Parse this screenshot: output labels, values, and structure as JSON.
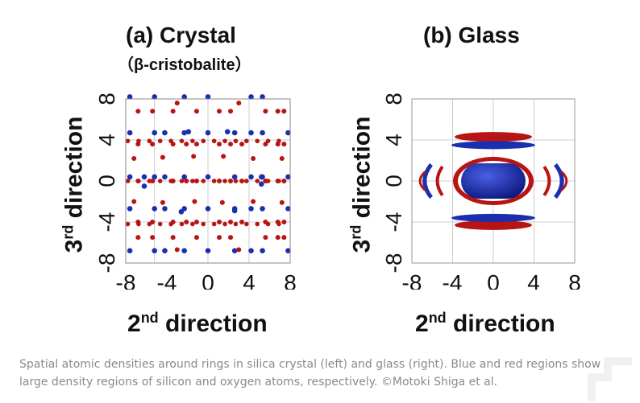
{
  "panels": [
    {
      "title": "(a) Crystal",
      "subtitle": "（β-cristobalite）",
      "xlabel_base": "2",
      "xlabel_sup": "nd",
      "xlabel_rest": " direction",
      "ylabel_base": "3",
      "ylabel_sup": "rd",
      "ylabel_rest": " direction",
      "x_ticks": [
        "-8",
        "-4",
        "0",
        "4",
        "8"
      ],
      "y_ticks": [
        "-8",
        "-4",
        "0",
        "4",
        "8"
      ]
    },
    {
      "title": "(b) Glass",
      "xlabel_base": "2",
      "xlabel_sup": "nd",
      "xlabel_rest": " direction",
      "ylabel_base": "3",
      "ylabel_sup": "rd",
      "ylabel_rest": " direction",
      "x_ticks": [
        "-8",
        "-4",
        "0",
        "4",
        "8"
      ],
      "y_ticks": [
        "-8",
        "-4",
        "0",
        "4",
        "8"
      ]
    }
  ],
  "caption": "Spatial atomic densities around rings in silica crystal (left) and glass (right). Blue and red regions show large density regions of silicon and oxygen atoms, respectively. ©Motoki Shiga et al.",
  "colors": {
    "silicon": "#1a2fb0",
    "oxygen": "#b81414",
    "grid": "#cccccc",
    "frame": "#888888"
  }
}
